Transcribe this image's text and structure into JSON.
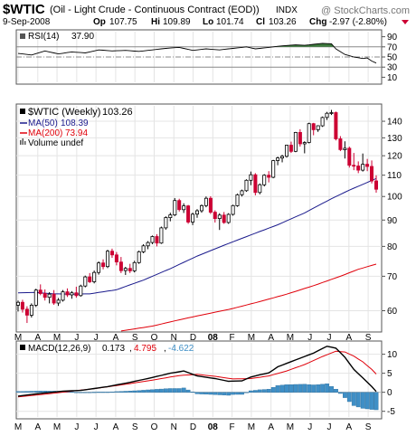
{
  "header": {
    "symbol": "$WTIC",
    "description": "(Oil - Light Crude - Continuous Contract (EOD))",
    "exchange": "INDX",
    "watermark": "@ StockCharts.com",
    "date": "9-Sep-2008",
    "open_label": "Op",
    "open": "107.75",
    "high_label": "Hi",
    "high": "109.89",
    "low_label": "Lo",
    "low": "101.74",
    "close_label": "Cl",
    "close": "103.26",
    "change_label": "Chg",
    "change": "-2.97 (-2.80%)"
  },
  "colors": {
    "up": "#000000",
    "down": "#cc0033",
    "ma50": "#1a1a8c",
    "ma200": "#e0000a",
    "rsi_fill": "#3d7a3d",
    "macd_hist": "#3f8fc6",
    "macd_signal": "#e0000a"
  },
  "x_axis_labels": [
    "M",
    "A",
    "M",
    "J",
    "J",
    "A",
    "S",
    "O",
    "N",
    "D",
    "08",
    "F",
    "M",
    "A",
    "M",
    "J",
    "J",
    "A",
    "S"
  ],
  "rsi_panel": {
    "label": "RSI(14)",
    "value": "37.90",
    "ylim": [
      0,
      100
    ],
    "ticks": [
      "90",
      "70",
      "50",
      "30",
      "10"
    ],
    "overbought": 70,
    "oversold": 30
  },
  "price_panel": {
    "legend_main": "$WTIC (Weekly)",
    "legend_main_value": "103.26",
    "legend_ma50": "MA(50)",
    "legend_ma50_value": "108.39",
    "legend_ma200": "MA(200)",
    "legend_ma200_value": "73.94",
    "legend_volume": "Volume undef",
    "y_scale": "log",
    "ylim": [
      55,
      150
    ],
    "ticks": [
      "140",
      "130",
      "120",
      "110",
      "100",
      "90",
      "80",
      "70",
      "60"
    ]
  },
  "macd_panel": {
    "label": "MACD(12,26,9)",
    "macd": "0.173",
    "signal": "4.795",
    "hist": "-4.622",
    "ylim": [
      -6.5,
      13
    ],
    "ticks": [
      "10",
      "5",
      "0",
      "-5"
    ]
  },
  "chart_data": {
    "type": "candlestick",
    "interval": "weekly",
    "x_start": "2007-03",
    "x_end": "2008-09",
    "ohlc": [
      [
        61.5,
        62.8,
        59.8,
        62.3
      ],
      [
        62.3,
        63.0,
        59.5,
        60.4
      ],
      [
        60.4,
        61.2,
        56.8,
        58.8
      ],
      [
        58.8,
        62.0,
        58.2,
        61.5
      ],
      [
        61.5,
        66.2,
        61.0,
        65.8
      ],
      [
        65.8,
        67.5,
        64.3,
        64.8
      ],
      [
        64.8,
        66.0,
        62.8,
        63.7
      ],
      [
        63.7,
        65.2,
        62.0,
        64.6
      ],
      [
        64.6,
        65.8,
        61.6,
        62.1
      ],
      [
        62.1,
        63.5,
        61.3,
        62.9
      ],
      [
        62.9,
        65.8,
        62.5,
        65.3
      ],
      [
        65.3,
        66.3,
        63.8,
        64.4
      ],
      [
        64.4,
        65.5,
        63.3,
        65.0
      ],
      [
        65.0,
        66.8,
        63.6,
        64.2
      ],
      [
        64.2,
        67.4,
        63.9,
        67.0
      ],
      [
        67.0,
        70.2,
        66.6,
        69.8
      ],
      [
        69.8,
        71.0,
        67.9,
        68.3
      ],
      [
        68.3,
        71.8,
        67.8,
        71.2
      ],
      [
        71.2,
        74.8,
        70.5,
        74.3
      ],
      [
        74.3,
        75.5,
        72.2,
        73.1
      ],
      [
        73.1,
        78.8,
        72.6,
        78.3
      ],
      [
        78.3,
        79.2,
        76.0,
        77.0
      ],
      [
        77.0,
        78.0,
        73.5,
        74.6
      ],
      [
        74.6,
        76.3,
        71.0,
        71.8
      ],
      [
        71.8,
        73.0,
        70.4,
        72.5
      ],
      [
        72.5,
        74.0,
        71.0,
        71.7
      ],
      [
        71.7,
        75.0,
        71.2,
        74.4
      ],
      [
        74.4,
        78.5,
        74.0,
        78.1
      ],
      [
        78.1,
        80.8,
        77.6,
        80.2
      ],
      [
        80.2,
        81.9,
        79.0,
        81.4
      ],
      [
        81.4,
        84.0,
        80.8,
        83.6
      ],
      [
        83.6,
        84.5,
        80.0,
        81.2
      ],
      [
        81.2,
        87.4,
        80.9,
        86.9
      ],
      [
        86.9,
        91.5,
        86.2,
        91.0
      ],
      [
        91.0,
        93.0,
        89.5,
        92.1
      ],
      [
        92.1,
        99.3,
        91.6,
        98.2
      ],
      [
        98.2,
        99.0,
        93.5,
        94.3
      ],
      [
        94.3,
        97.0,
        92.9,
        95.9
      ],
      [
        95.9,
        96.3,
        88.5,
        89.2
      ],
      [
        89.2,
        93.0,
        88.0,
        92.4
      ],
      [
        92.4,
        94.5,
        90.9,
        93.8
      ],
      [
        93.8,
        96.5,
        93.0,
        96.0
      ],
      [
        96.0,
        100.0,
        95.3,
        99.2
      ],
      [
        99.2,
        100.1,
        92.5,
        93.2
      ],
      [
        93.2,
        94.0,
        89.0,
        90.6
      ],
      [
        90.6,
        92.8,
        86.1,
        92.0
      ],
      [
        92.0,
        93.3,
        88.5,
        89.0
      ],
      [
        89.0,
        92.8,
        88.5,
        92.3
      ],
      [
        92.3,
        96.4,
        91.8,
        96.0
      ],
      [
        96.0,
        101.3,
        95.5,
        100.8
      ],
      [
        100.8,
        103.1,
        100.0,
        102.6
      ],
      [
        102.6,
        108.0,
        102.1,
        107.5
      ],
      [
        107.5,
        111.8,
        105.2,
        110.2
      ],
      [
        110.2,
        111.0,
        100.5,
        101.8
      ],
      [
        101.8,
        106.0,
        101.0,
        105.4
      ],
      [
        105.4,
        110.5,
        104.6,
        110.0
      ],
      [
        110.0,
        112.0,
        106.5,
        109.0
      ],
      [
        109.0,
        117.8,
        108.5,
        117.4
      ],
      [
        117.4,
        119.5,
        115.0,
        118.8
      ],
      [
        118.8,
        120.5,
        116.5,
        119.7
      ],
      [
        119.7,
        126.0,
        119.0,
        125.8
      ],
      [
        125.8,
        127.8,
        121.5,
        122.4
      ],
      [
        122.4,
        133.5,
        121.9,
        133.2
      ],
      [
        133.2,
        135.1,
        125.0,
        126.6
      ],
      [
        126.6,
        128.0,
        121.3,
        127.3
      ],
      [
        127.3,
        139.1,
        126.8,
        138.5
      ],
      [
        138.5,
        139.0,
        131.5,
        134.8
      ],
      [
        134.8,
        137.5,
        133.5,
        137.2
      ],
      [
        137.2,
        143.0,
        136.5,
        142.4
      ],
      [
        142.4,
        146.0,
        140.8,
        145.1
      ],
      [
        145.1,
        147.3,
        144.0,
        145.5
      ],
      [
        145.5,
        146.2,
        128.5,
        129.4
      ],
      [
        129.4,
        131.0,
        122.5,
        123.3
      ],
      [
        123.3,
        128.0,
        118.5,
        124.1
      ],
      [
        124.1,
        125.0,
        113.8,
        115.0
      ],
      [
        115.0,
        121.5,
        112.5,
        114.6
      ],
      [
        114.6,
        117.0,
        111.0,
        112.5
      ],
      [
        112.5,
        121.2,
        111.8,
        115.5
      ],
      [
        115.5,
        118.3,
        112.0,
        114.4
      ],
      [
        114.4,
        117.5,
        106.0,
        107.2
      ],
      [
        107.2,
        109.9,
        101.7,
        103.3
      ]
    ],
    "ma50": [
      [
        0,
        65.0
      ],
      [
        4,
        65.1
      ],
      [
        8,
        64.7
      ],
      [
        12,
        64.6
      ],
      [
        16,
        64.7
      ],
      [
        22,
        65.9
      ],
      [
        28,
        68.8
      ],
      [
        34,
        72.4
      ],
      [
        40,
        76.6
      ],
      [
        46,
        80.4
      ],
      [
        52,
        84.2
      ],
      [
        58,
        88.1
      ],
      [
        64,
        92.9
      ],
      [
        70,
        99.0
      ],
      [
        74,
        102.9
      ],
      [
        78,
        106.5
      ],
      [
        80,
        108.4
      ]
    ],
    "ma200": [
      [
        23,
        54.8
      ],
      [
        30,
        56.0
      ],
      [
        36,
        57.6
      ],
      [
        42,
        59.1
      ],
      [
        48,
        60.6
      ],
      [
        54,
        62.5
      ],
      [
        60,
        64.6
      ],
      [
        66,
        67.1
      ],
      [
        72,
        70.0
      ],
      [
        76,
        72.2
      ],
      [
        80,
        73.9
      ]
    ],
    "rsi": [
      [
        0,
        57
      ],
      [
        3,
        54
      ],
      [
        6,
        62
      ],
      [
        9,
        56
      ],
      [
        12,
        60
      ],
      [
        15,
        58
      ],
      [
        18,
        64
      ],
      [
        21,
        62
      ],
      [
        24,
        63
      ],
      [
        27,
        61
      ],
      [
        30,
        64
      ],
      [
        33,
        67
      ],
      [
        36,
        69
      ],
      [
        39,
        63
      ],
      [
        42,
        66
      ],
      [
        45,
        64
      ],
      [
        48,
        67
      ],
      [
        51,
        70
      ],
      [
        53,
        66
      ],
      [
        56,
        69
      ],
      [
        59,
        72
      ],
      [
        62,
        74
      ],
      [
        64,
        73
      ],
      [
        66,
        75
      ],
      [
        68,
        77
      ],
      [
        70,
        76
      ],
      [
        71,
        66
      ],
      [
        73,
        55
      ],
      [
        75,
        50
      ],
      [
        77,
        47
      ],
      [
        78,
        48
      ],
      [
        79,
        42
      ],
      [
        80,
        38
      ]
    ],
    "macd": [
      [
        0,
        -1.0
      ],
      [
        5,
        -0.3
      ],
      [
        10,
        0.3
      ],
      [
        14,
        0.5
      ],
      [
        20,
        1.5
      ],
      [
        25,
        2.6
      ],
      [
        30,
        3.9
      ],
      [
        34,
        5.0
      ],
      [
        37,
        5.6
      ],
      [
        40,
        4.3
      ],
      [
        44,
        3.6
      ],
      [
        47,
        2.9
      ],
      [
        50,
        3.0
      ],
      [
        52,
        4.0
      ],
      [
        54,
        4.6
      ],
      [
        56,
        5.1
      ],
      [
        58,
        6.7
      ],
      [
        62,
        8.5
      ],
      [
        66,
        10.3
      ],
      [
        69,
        12.1
      ],
      [
        71,
        11.6
      ],
      [
        73,
        9.2
      ],
      [
        75,
        6.0
      ],
      [
        77,
        3.8
      ],
      [
        79,
        1.5
      ],
      [
        80,
        0.2
      ]
    ],
    "macd_signal": [
      [
        0,
        -1.2
      ],
      [
        6,
        -0.5
      ],
      [
        12,
        0.3
      ],
      [
        18,
        1.1
      ],
      [
        24,
        2.1
      ],
      [
        30,
        3.2
      ],
      [
        36,
        4.4
      ],
      [
        40,
        4.7
      ],
      [
        44,
        4.2
      ],
      [
        48,
        3.5
      ],
      [
        52,
        3.6
      ],
      [
        56,
        4.3
      ],
      [
        60,
        5.6
      ],
      [
        64,
        7.3
      ],
      [
        68,
        9.4
      ],
      [
        71,
        10.8
      ],
      [
        73,
        10.6
      ],
      [
        75,
        9.5
      ],
      [
        77,
        8.0
      ],
      [
        79,
        6.0
      ],
      [
        80,
        4.8
      ]
    ]
  }
}
